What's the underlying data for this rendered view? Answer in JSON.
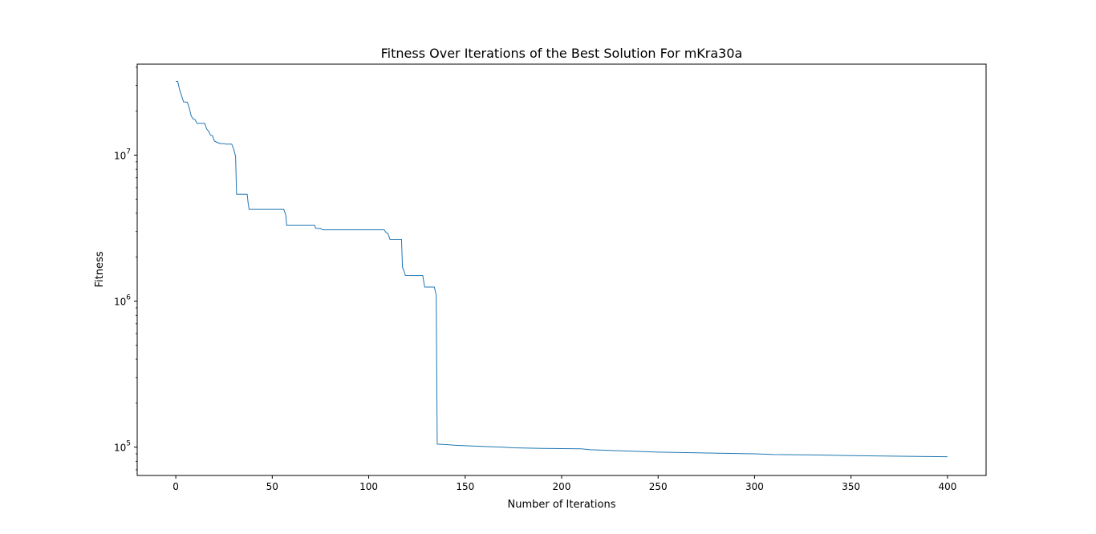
{
  "chart_data": {
    "type": "line",
    "title": "Fitness Over Iterations of the Best Solution For mKra30a",
    "xlabel": "Number of Iterations",
    "ylabel": "Fitness",
    "xlim": [
      -20,
      420
    ],
    "ylim": [
      64000,
      42000000
    ],
    "yscale": "log",
    "grid": false,
    "x_ticks": [
      0,
      50,
      100,
      150,
      200,
      250,
      300,
      350,
      400
    ],
    "y_ticks": [
      {
        "value": 100000,
        "base": "10",
        "exp": "5"
      },
      {
        "value": 1000000,
        "base": "10",
        "exp": "6"
      },
      {
        "value": 10000000,
        "base": "10",
        "exp": "7"
      }
    ],
    "series": [
      {
        "color": "#1f77b4",
        "points": [
          [
            0,
            32000000
          ],
          [
            1,
            32000000
          ],
          [
            2,
            28000000
          ],
          [
            3,
            25500000
          ],
          [
            4,
            23200000
          ],
          [
            6,
            23000000
          ],
          [
            7,
            21000000
          ],
          [
            8,
            18500000
          ],
          [
            9,
            17700000
          ],
          [
            10,
            17500000
          ],
          [
            11,
            16500000
          ],
          [
            15,
            16500000
          ],
          [
            16,
            15100000
          ],
          [
            17,
            14600000
          ],
          [
            18,
            13700000
          ],
          [
            19,
            13600000
          ],
          [
            20,
            12500000
          ],
          [
            21,
            12300000
          ],
          [
            23,
            12000000
          ],
          [
            25,
            12000000
          ],
          [
            26,
            11900000
          ],
          [
            29,
            11900000
          ],
          [
            30,
            11000000
          ],
          [
            31,
            9800000
          ],
          [
            31.5,
            5400000
          ],
          [
            37,
            5400000
          ],
          [
            37.5,
            4700000
          ],
          [
            38,
            4250000
          ],
          [
            56,
            4250000
          ],
          [
            57,
            3900000
          ],
          [
            57.5,
            3300000
          ],
          [
            72,
            3300000
          ],
          [
            72.5,
            3150000
          ],
          [
            75,
            3150000
          ],
          [
            76,
            3080000
          ],
          [
            108,
            3080000
          ],
          [
            109,
            2950000
          ],
          [
            110,
            2900000
          ],
          [
            111,
            2650000
          ],
          [
            117,
            2650000
          ],
          [
            117.5,
            1700000
          ],
          [
            118,
            1650000
          ],
          [
            119,
            1500000
          ],
          [
            128,
            1500000
          ],
          [
            129,
            1250000
          ],
          [
            134,
            1250000
          ],
          [
            135,
            1100000
          ],
          [
            135.5,
            105000
          ],
          [
            141,
            104000
          ],
          [
            145,
            103000
          ],
          [
            160,
            101000
          ],
          [
            170,
            100000
          ],
          [
            175,
            99000
          ],
          [
            190,
            98000
          ],
          [
            210,
            97500
          ],
          [
            215,
            96000
          ],
          [
            225,
            95000
          ],
          [
            240,
            93500
          ],
          [
            250,
            92500
          ],
          [
            270,
            91500
          ],
          [
            290,
            90500
          ],
          [
            300,
            90000
          ],
          [
            310,
            89000
          ],
          [
            330,
            88500
          ],
          [
            350,
            87500
          ],
          [
            380,
            86500
          ],
          [
            400,
            86000
          ]
        ]
      }
    ]
  }
}
